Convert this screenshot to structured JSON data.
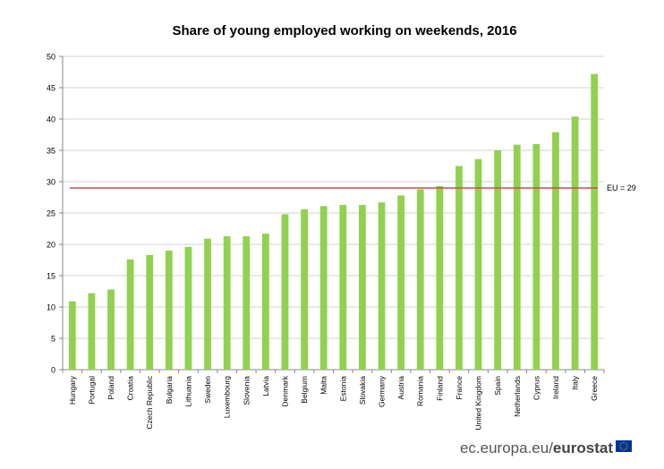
{
  "chart_data": {
    "type": "bar",
    "title": "Share of young employed working on weekends, 2016",
    "categories": [
      "Hungary",
      "Portugal",
      "Poland",
      "Croatia",
      "Czech Republic",
      "Bulgaria",
      "Lithuania",
      "Sweden",
      "Luxembourg",
      "Slovenia",
      "Latvia",
      "Denmark",
      "Belgium",
      "Malta",
      "Estonia",
      "Slovakia",
      "Germany",
      "Austria",
      "Romania",
      "Finland",
      "France",
      "United Kingdom",
      "Spain",
      "Netherlands",
      "Cyprus",
      "Ireland",
      "Italy",
      "Greece"
    ],
    "values": [
      10.9,
      12.2,
      12.8,
      17.6,
      18.3,
      19.0,
      19.6,
      20.9,
      21.3,
      21.3,
      21.7,
      24.8,
      25.6,
      26.1,
      26.3,
      26.3,
      26.7,
      27.8,
      28.8,
      29.3,
      32.5,
      33.6,
      35.0,
      35.9,
      36.0,
      37.9,
      40.4,
      47.2
    ],
    "ylim": [
      0,
      50
    ],
    "yticks": [
      0,
      5,
      10,
      15,
      20,
      25,
      30,
      35,
      40,
      45,
      50
    ],
    "grid": true,
    "reference_line": {
      "value": 29,
      "label": "EU = 29",
      "color": "#c0504d"
    },
    "bar_color": "#92d050"
  },
  "footer": {
    "source_prefix": "ec.europa.eu/",
    "source_brand": "eurostat"
  }
}
